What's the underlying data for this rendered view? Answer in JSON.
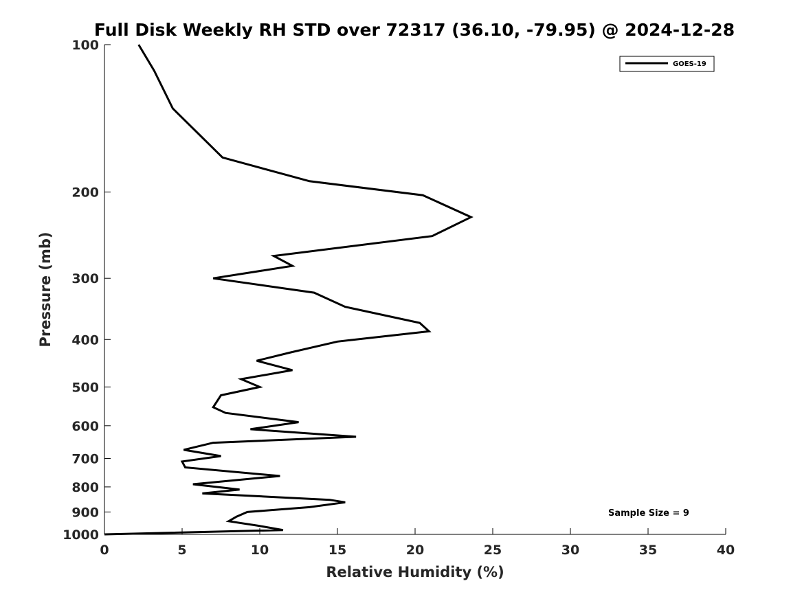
{
  "chart_data": {
    "type": "line",
    "title": "Full Disk Weekly RH STD over 72317 (36.10, -79.95) @ 2024-12-28",
    "xlabel": "Relative Humidity (%)",
    "ylabel": "Pressure (mb)",
    "xlim": [
      0,
      40
    ],
    "ylim": [
      100,
      1000
    ],
    "y_scale": "log",
    "y_reversed": true,
    "x_ticks": [
      0,
      5,
      10,
      15,
      20,
      25,
      30,
      35,
      40
    ],
    "x_tick_labels": [
      "0",
      "5",
      "10",
      "15",
      "20",
      "25",
      "30",
      "35",
      "40"
    ],
    "y_ticks": [
      100,
      200,
      300,
      400,
      500,
      600,
      700,
      800,
      900,
      1000
    ],
    "y_tick_labels": [
      "100",
      "200",
      "300",
      "400",
      "500",
      "600",
      "700",
      "800",
      "900",
      "1000"
    ],
    "grid": false,
    "legend_position": "top-right",
    "annotation": "Sample Size = 9",
    "series": [
      {
        "name": "GOES-19",
        "color": "#000000",
        "x": [
          2.2,
          3.2,
          4.4,
          7.6,
          13.2,
          20.5,
          23.6,
          21.1,
          10.9,
          12.1,
          7.0,
          13.5,
          15.5,
          20.3,
          20.9,
          15.0,
          12.0,
          9.8,
          12.1,
          8.8,
          10.0,
          7.5,
          7.0,
          7.8,
          12.5,
          9.4,
          16.2,
          7.0,
          5.1,
          7.5,
          5.0,
          5.2,
          11.3,
          5.7,
          8.7,
          6.3,
          14.5,
          15.5,
          13.2,
          9.2,
          8.5,
          8.0,
          9.9,
          11.5,
          0.0
        ],
        "y": [
          100,
          113,
          135,
          170,
          190,
          203,
          225,
          246,
          270,
          283,
          300,
          321,
          343,
          370,
          385,
          404,
          425,
          442,
          462,
          482,
          500,
          520,
          550,
          565,
          590,
          610,
          632,
          650,
          672,
          692,
          710,
          730,
          760,
          790,
          810,
          825,
          850,
          860,
          880,
          900,
          920,
          940,
          960,
          980,
          1000
        ]
      }
    ]
  }
}
